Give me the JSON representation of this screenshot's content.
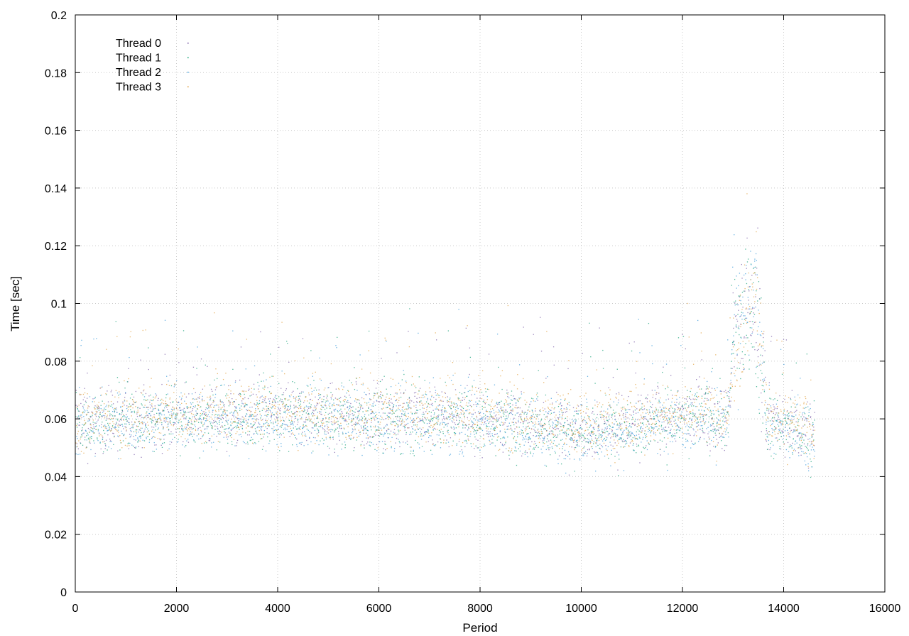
{
  "chart_data": {
    "type": "scatter",
    "title": "",
    "xlabel": "Period",
    "ylabel": "Time [sec]",
    "xlim": [
      0,
      16000
    ],
    "ylim": [
      0,
      0.2
    ],
    "x_ticks": [
      0,
      2000,
      4000,
      6000,
      8000,
      10000,
      12000,
      14000,
      16000
    ],
    "y_ticks": [
      0,
      0.02,
      0.04,
      0.06,
      0.08,
      0.1,
      0.12,
      0.14,
      0.16,
      0.18,
      0.2
    ],
    "x_tick_labels": [
      "0",
      "2000",
      "4000",
      "6000",
      "8000",
      "10000",
      "12000",
      "14000",
      "16000"
    ],
    "y_tick_labels": [
      "0",
      "0.02",
      "0.04",
      "0.06",
      "0.08",
      "0.1",
      "0.12",
      "0.14",
      "0.16",
      "0.18",
      "0.2"
    ],
    "grid": true,
    "legend_position": "top-left",
    "x_range_of_points": [
      0,
      14600
    ],
    "series": [
      {
        "name": "Thread 0",
        "color": "#7b5ea7",
        "profile": [
          [
            0,
            0.059
          ],
          [
            2000,
            0.061
          ],
          [
            4000,
            0.062
          ],
          [
            6000,
            0.061
          ],
          [
            8000,
            0.061
          ],
          [
            9200,
            0.058
          ],
          [
            10200,
            0.057
          ],
          [
            11000,
            0.059
          ],
          [
            12000,
            0.062
          ],
          [
            12900,
            0.061
          ],
          [
            13000,
            0.088
          ],
          [
            13400,
            0.1
          ],
          [
            13600,
            0.08
          ],
          [
            13650,
            0.06
          ],
          [
            14600,
            0.055
          ]
        ]
      },
      {
        "name": "Thread 1",
        "color": "#1aa37a",
        "profile": [
          [
            0,
            0.059
          ],
          [
            2000,
            0.06
          ],
          [
            4000,
            0.061
          ],
          [
            6000,
            0.06
          ],
          [
            8000,
            0.06
          ],
          [
            9200,
            0.057
          ],
          [
            10200,
            0.056
          ],
          [
            11000,
            0.058
          ],
          [
            12000,
            0.061
          ],
          [
            12900,
            0.06
          ],
          [
            13000,
            0.09
          ],
          [
            13400,
            0.098
          ],
          [
            13600,
            0.078
          ],
          [
            13650,
            0.059
          ],
          [
            14600,
            0.054
          ]
        ]
      },
      {
        "name": "Thread 2",
        "color": "#3a9ad9",
        "profile": [
          [
            0,
            0.058
          ],
          [
            2000,
            0.06
          ],
          [
            4000,
            0.06
          ],
          [
            6000,
            0.059
          ],
          [
            8000,
            0.06
          ],
          [
            9200,
            0.056
          ],
          [
            10200,
            0.055
          ],
          [
            11000,
            0.057
          ],
          [
            12000,
            0.06
          ],
          [
            12900,
            0.06
          ],
          [
            13000,
            0.09
          ],
          [
            13400,
            0.1
          ],
          [
            13600,
            0.08
          ],
          [
            13650,
            0.058
          ],
          [
            14600,
            0.054
          ]
        ]
      },
      {
        "name": "Thread 3",
        "color": "#e0a040",
        "profile": [
          [
            0,
            0.06
          ],
          [
            2000,
            0.062
          ],
          [
            4000,
            0.063
          ],
          [
            6000,
            0.062
          ],
          [
            8000,
            0.062
          ],
          [
            9200,
            0.06
          ],
          [
            10200,
            0.058
          ],
          [
            11000,
            0.06
          ],
          [
            12000,
            0.063
          ],
          [
            12900,
            0.062
          ],
          [
            13000,
            0.085
          ],
          [
            13400,
            0.105
          ],
          [
            13600,
            0.08
          ],
          [
            13650,
            0.061
          ],
          [
            14600,
            0.056
          ]
        ]
      }
    ]
  }
}
